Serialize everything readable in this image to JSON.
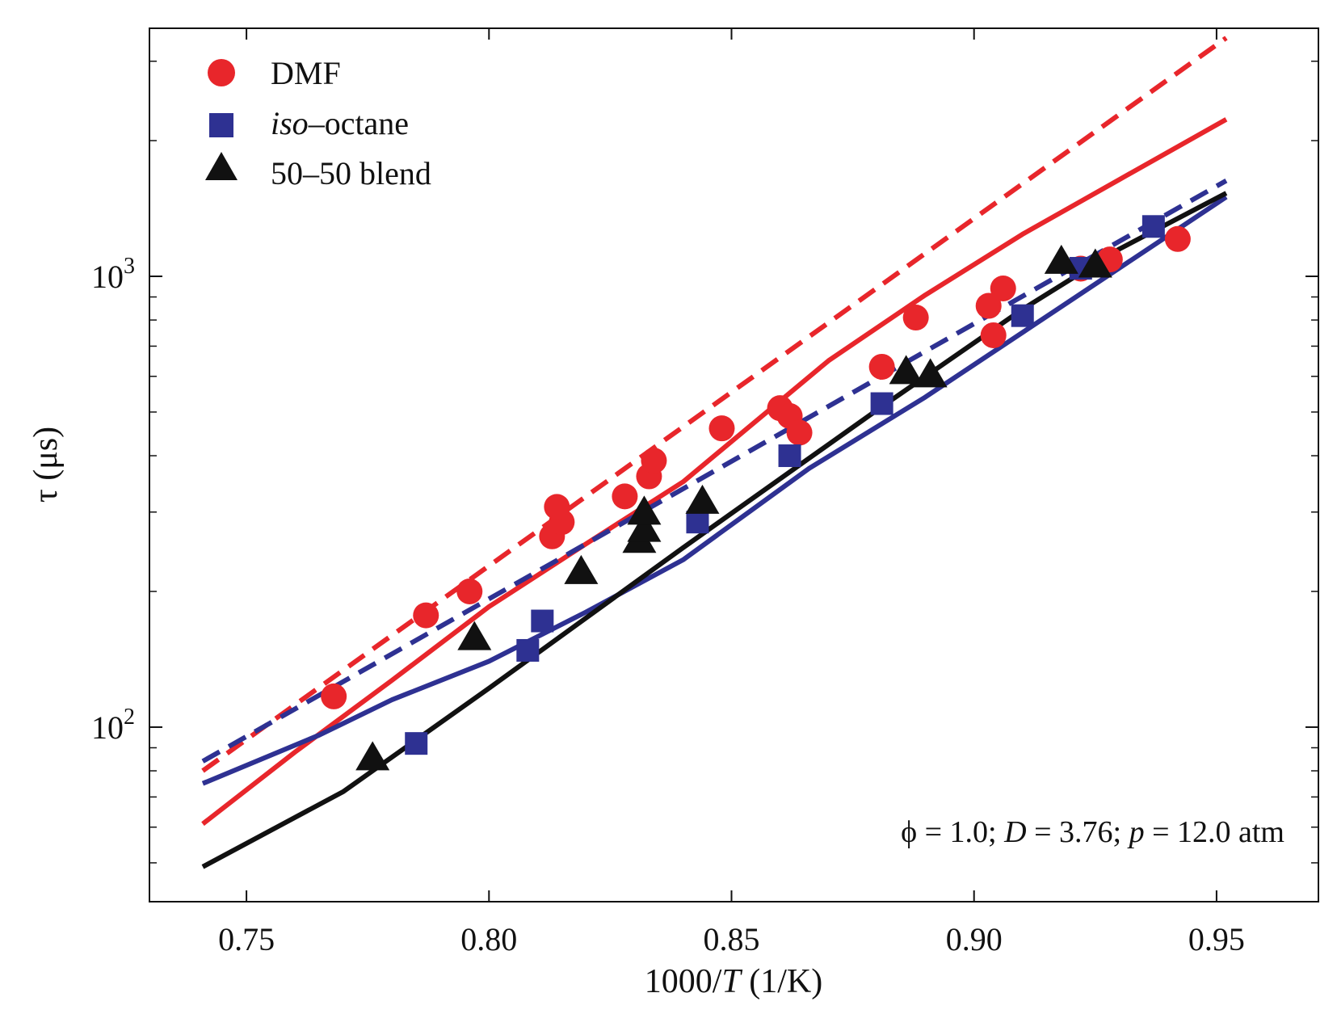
{
  "chart_data": {
    "type": "scatter",
    "xlabel": "1000/T (1/K)",
    "ylabel": "τ (μs)",
    "x_scale": "linear",
    "y_scale": "log",
    "xlim": [
      0.73,
      0.971
    ],
    "ylim": [
      41,
      3550
    ],
    "xticks": [
      0.75,
      0.8,
      0.85,
      0.9,
      0.95
    ],
    "xtick_labels": [
      "0.75",
      "0.80",
      "0.85",
      "0.90",
      "0.95"
    ],
    "yticks": [
      100,
      1000
    ],
    "ytick_labels": [
      {
        "base": "10",
        "exp": "2"
      },
      {
        "base": "10",
        "exp": "3"
      }
    ],
    "legend_location": "top-left",
    "legend": [
      {
        "label": "DMF",
        "marker": "circle",
        "color": "#e8262b"
      },
      {
        "label_italic": "iso",
        "label_rest": "–octane",
        "marker": "square",
        "color": "#2e3192"
      },
      {
        "label": "50–50 blend",
        "marker": "triangle",
        "color": "#111111"
      }
    ],
    "annotation": {
      "phi": "ϕ = 1.0; ",
      "d_sym": "D",
      "d_val": " = 3.76; ",
      "p_sym": "p",
      "p_val": " = 12.0 atm"
    },
    "series": [
      {
        "name": "DMF",
        "kind": "points",
        "marker": "circle",
        "color": "#e8262b",
        "x": [
          0.768,
          0.787,
          0.796,
          0.813,
          0.815,
          0.814,
          0.828,
          0.833,
          0.834,
          0.848,
          0.86,
          0.862,
          0.864,
          0.881,
          0.888,
          0.903,
          0.904,
          0.906,
          0.922,
          0.928,
          0.942
        ],
        "y": [
          117,
          177,
          200,
          265,
          285,
          308,
          325,
          360,
          390,
          460,
          510,
          490,
          450,
          630,
          810,
          860,
          740,
          940,
          1040,
          1090,
          1210
        ]
      },
      {
        "name": "iso-octane",
        "kind": "points",
        "marker": "square",
        "color": "#2e3192",
        "x": [
          0.785,
          0.808,
          0.811,
          0.843,
          0.862,
          0.881,
          0.91,
          0.922,
          0.937
        ],
        "y": [
          92,
          148,
          172,
          285,
          400,
          522,
          818,
          1042,
          1290
        ]
      },
      {
        "name": "50–50 blend",
        "kind": "points",
        "marker": "triangle",
        "color": "#111111",
        "x": [
          0.776,
          0.797,
          0.819,
          0.831,
          0.832,
          0.832,
          0.844,
          0.886,
          0.891,
          0.918,
          0.925
        ],
        "y": [
          85,
          157,
          220,
          258,
          273,
          298,
          315,
          611,
          601,
          1073,
          1053
        ]
      },
      {
        "name": "DMF model (solid)",
        "kind": "line",
        "dash": false,
        "color": "#e8262b",
        "x": [
          0.741,
          0.76,
          0.78,
          0.8,
          0.82,
          0.84,
          0.87,
          0.89,
          0.91,
          0.93,
          0.952
        ],
        "y": [
          61,
          88,
          127,
          185,
          255,
          350,
          650,
          910,
          1240,
          1640,
          2230
        ]
      },
      {
        "name": "DMF model (dashed)",
        "kind": "line",
        "dash": true,
        "color": "#e8262b",
        "x": [
          0.741,
          0.952
        ],
        "y": [
          80,
          3380
        ]
      },
      {
        "name": "iso-octane model (solid)",
        "kind": "line",
        "dash": false,
        "color": "#2e3192",
        "x": [
          0.741,
          0.765,
          0.78,
          0.8,
          0.82,
          0.84,
          0.866,
          0.89,
          0.952
        ],
        "y": [
          75,
          96,
          115,
          140,
          180,
          235,
          375,
          540,
          1500
        ]
      },
      {
        "name": "iso-octane model (dashed)",
        "kind": "line",
        "dash": true,
        "color": "#2e3192",
        "x": [
          0.741,
          0.952
        ],
        "y": [
          84,
          1630
        ]
      },
      {
        "name": "blend model (solid)",
        "kind": "line",
        "dash": false,
        "color": "#111111",
        "x": [
          0.741,
          0.77,
          0.8,
          0.84,
          0.88,
          0.91,
          0.93,
          0.952
        ],
        "y": [
          49,
          72,
          122,
          250,
          505,
          845,
          1150,
          1530
        ]
      }
    ]
  }
}
